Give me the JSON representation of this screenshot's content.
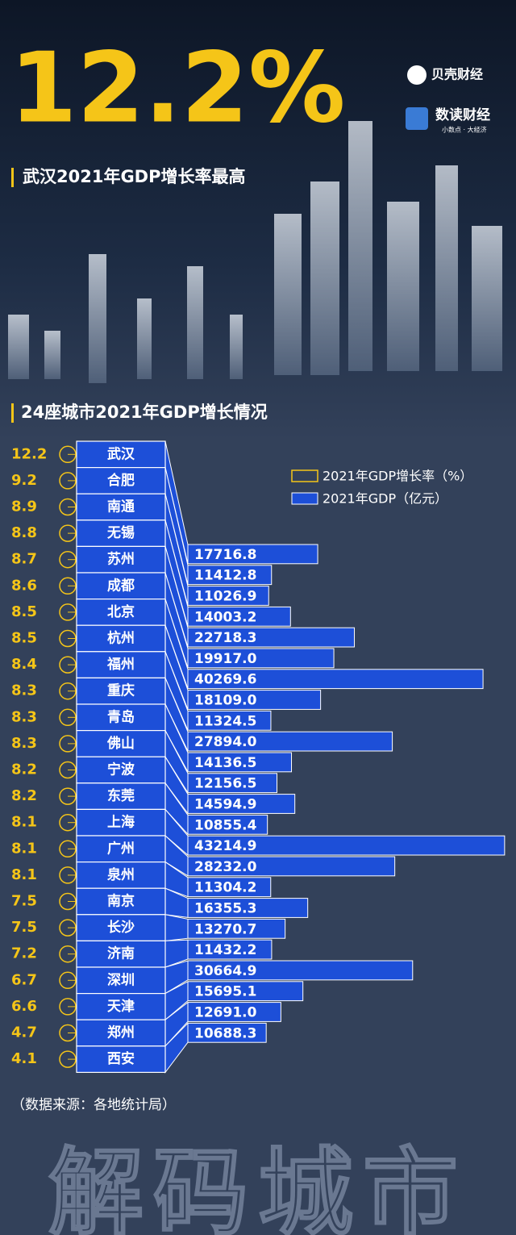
{
  "header": {
    "headline": "12.2%",
    "subtitle": "武汉2021年GDP增长率最高",
    "brand1": "贝壳财经",
    "brand2": "数读财经",
    "slogan": "小数点 · 大经济"
  },
  "chart_data": {
    "type": "bar",
    "title": "24座城市2021年GDP增长情况",
    "categories": [
      "武汉",
      "合肥",
      "南通",
      "无锡",
      "苏州",
      "成都",
      "北京",
      "杭州",
      "福州",
      "重庆",
      "青岛",
      "佛山",
      "宁波",
      "东莞",
      "上海",
      "广州",
      "泉州",
      "南京",
      "长沙",
      "济南",
      "深圳",
      "天津",
      "郑州",
      "西安"
    ],
    "series": [
      {
        "name": "2021年GDP增长率（%）",
        "color": "#f5c518",
        "values": [
          12.2,
          9.2,
          8.9,
          8.8,
          8.7,
          8.6,
          8.5,
          8.5,
          8.4,
          8.3,
          8.3,
          8.3,
          8.2,
          8.2,
          8.1,
          8.1,
          8.1,
          7.5,
          7.5,
          7.2,
          6.7,
          6.6,
          4.7,
          4.1
        ]
      },
      {
        "name": "2021年GDP（亿元）",
        "color": "#1d4fd8",
        "values": [
          17716.8,
          11412.8,
          11026.9,
          14003.2,
          22718.3,
          19917,
          40269.6,
          18109,
          11324.5,
          27894,
          14136.5,
          12156.5,
          14594.9,
          10855.4,
          43214.9,
          28232,
          11304.2,
          16355.3,
          13270.7,
          11432.2,
          30664.9,
          15695.1,
          12691,
          10688.3
        ],
        "value_labels": [
          "17716.8",
          "11412.8",
          "11026.9",
          "14003.2",
          "22718.3",
          "19917.0",
          "40269.6",
          "18109.0",
          "11324.5",
          "27894.0",
          "14136.5",
          "12156.5",
          "14594.9",
          "10855.4",
          "43214.9",
          "28232.0",
          "11304.2",
          "16355.3",
          "13270.7",
          "11432.2",
          "30664.9",
          "15695.1",
          "12691.0",
          "10688.3"
        ]
      }
    ],
    "xlim": [
      0,
      44000
    ]
  },
  "footer": {
    "source": "（数据来源：各地统计局）",
    "watermark": "解码城市"
  }
}
